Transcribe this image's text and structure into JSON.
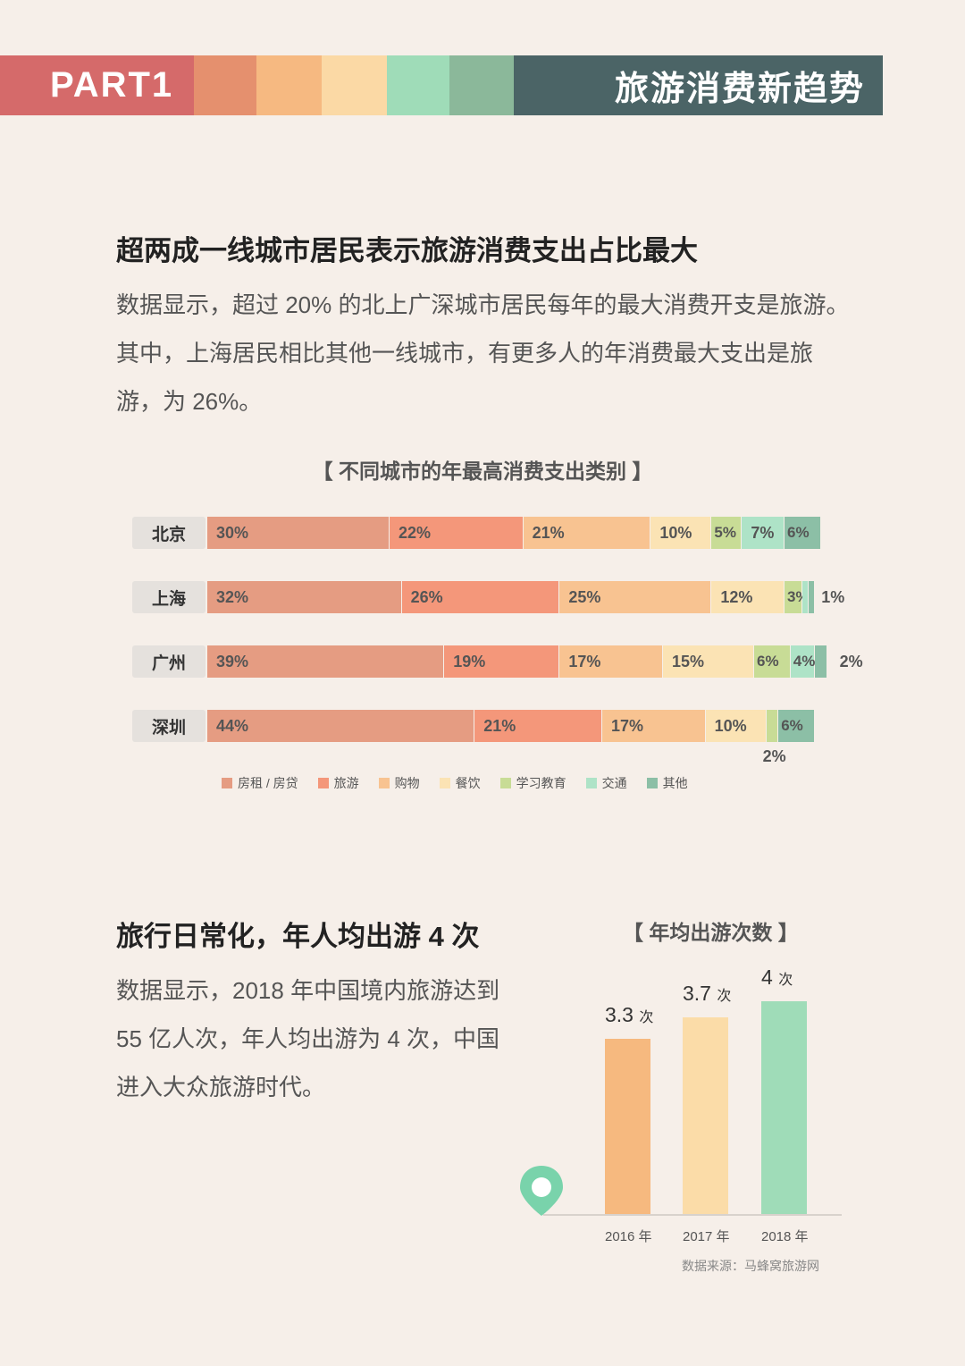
{
  "header": {
    "part_label": "PART1",
    "title": "旅游消费新趋势",
    "band_colors": [
      "#d56a6a",
      "#e5906e",
      "#f6b981",
      "#fbd9a5",
      "#9fdcb8",
      "#8bb89a",
      "#4b6466"
    ]
  },
  "section1": {
    "title": "超两成一线城市居民表示旅游消费支出占比最大",
    "paragraph": "数据显示，超过 20% 的北上广深城市居民每年的最大消费开支是旅游。其中，上海居民相比其他一线城市，有更多人的年消费最大支出是旅游，为 26%。"
  },
  "section2": {
    "title": "旅行日常化，年人均出游 4 次",
    "paragraph": "数据显示，2018 年中国境内旅游达到 55 亿人次，年人均出游为 4 次，中国进入大众旅游时代。",
    "source": "数据来源：马蜂窝旅游网"
  },
  "chart_data": [
    {
      "type": "bar",
      "orientation": "horizontal",
      "stacked": true,
      "title": "【 不同城市的年最高消费支出类别 】",
      "categories": [
        "北京",
        "上海",
        "广州",
        "深圳"
      ],
      "series": [
        {
          "name": "房租 / 房贷",
          "color": "#e59c82",
          "values": [
            30,
            32,
            39,
            44
          ],
          "labels": [
            "30%",
            "32%",
            "39%",
            "44%"
          ]
        },
        {
          "name": "旅游",
          "color": "#f4977a",
          "values": [
            22,
            26,
            19,
            21
          ],
          "labels": [
            "22%",
            "26%",
            "19%",
            "21%"
          ]
        },
        {
          "name": "购物",
          "color": "#f8c391",
          "values": [
            21,
            25,
            17,
            17
          ],
          "labels": [
            "21%",
            "25%",
            "17%",
            "17%"
          ]
        },
        {
          "name": "餐饮",
          "color": "#fbe3b4",
          "values": [
            10,
            12,
            15,
            10
          ],
          "labels": [
            "10%",
            "12%",
            "15%",
            "10%"
          ]
        },
        {
          "name": "学习教育",
          "color": "#c8dc96",
          "values": [
            5,
            3,
            6,
            2
          ],
          "labels": [
            "5%",
            "3%",
            "6%",
            "2%"
          ]
        },
        {
          "name": "交通",
          "color": "#aee3c7",
          "values": [
            7,
            1,
            4,
            0
          ],
          "labels": [
            "7%",
            "1%",
            "4%",
            ""
          ]
        },
        {
          "name": "其他",
          "color": "#8cbfa6",
          "values": [
            6,
            1,
            2,
            6
          ],
          "labels": [
            "6%",
            "",
            "2%",
            "6%"
          ]
        }
      ],
      "legend_position": "bottom"
    },
    {
      "type": "bar",
      "orientation": "vertical",
      "title": "【 年均出游次数 】",
      "categories": [
        "2016 年",
        "2017 年",
        "2018 年"
      ],
      "values": [
        3.3,
        3.7,
        4
      ],
      "unit": "次",
      "colors": [
        "#f6b97f",
        "#fbdca8",
        "#9fdcb8"
      ]
    }
  ]
}
